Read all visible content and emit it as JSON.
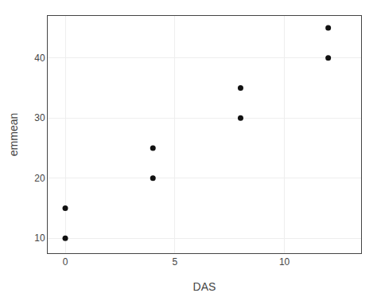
{
  "chart_data": {
    "type": "scatter",
    "x": [
      0,
      0,
      4,
      4,
      8,
      8,
      12,
      12
    ],
    "values": [
      10,
      15,
      20,
      25,
      30,
      35,
      40,
      45
    ],
    "xlabel": "DAS",
    "ylabel": "emmean",
    "xlim": [
      -0.8,
      13.5
    ],
    "ylim": [
      7.5,
      47
    ],
    "xticks": [
      0,
      5,
      10
    ],
    "yticks": [
      10,
      20,
      30,
      40
    ],
    "color": "#111111",
    "grid": true
  }
}
